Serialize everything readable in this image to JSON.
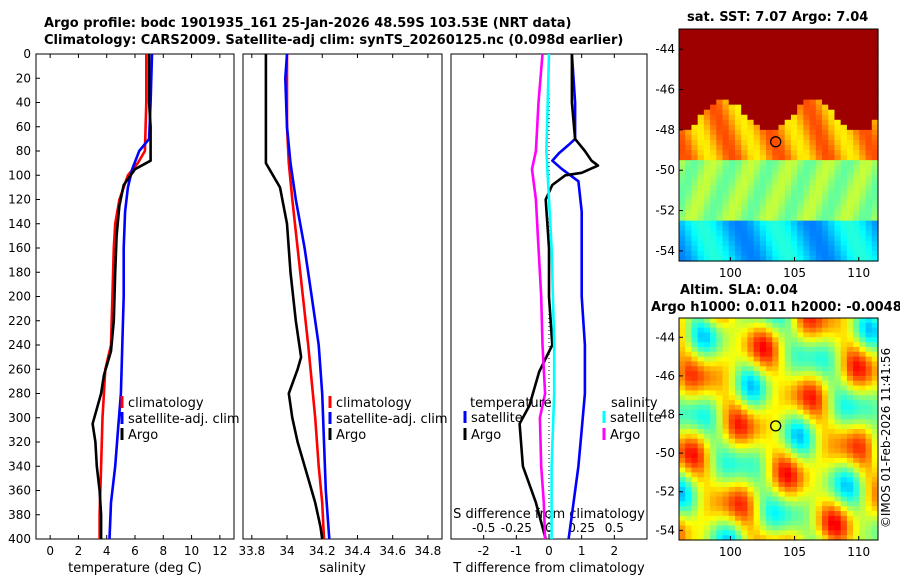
{
  "titles": {
    "line1": "Argo profile: bodc 1901935_161 25-Jan-2026 48.59S 103.53E (NRT data)",
    "line2": "Climatology: CARS2009. Satellite-adj clim: synTS_20260125.nc (0.098d earlier)",
    "sst": "sat. SST: 7.07 Argo: 7.04",
    "sla1": "Altim. SLA: 0.04",
    "sla2": "Argo h1000: 0.011 h2000: -0.0048"
  },
  "copyright": "©IMOS 01-Feb-2026 11:41:56",
  "colors": {
    "climatology": "#ff0000",
    "satellite": "#0000ff",
    "argo": "#000000",
    "salinity_sat": "#00ffff",
    "salinity_argo": "#ff00ff"
  },
  "chart_data": [
    {
      "id": "temperature",
      "type": "line",
      "xlabel": "temperature (deg C)",
      "xlim": [
        -1,
        13
      ],
      "ylim": [
        0,
        400
      ],
      "y_reversed": true,
      "xticks": [
        0,
        2,
        4,
        6,
        8,
        10,
        12
      ],
      "yticks": [
        0,
        20,
        40,
        60,
        80,
        100,
        120,
        140,
        160,
        180,
        200,
        220,
        240,
        260,
        280,
        300,
        320,
        340,
        360,
        380,
        400
      ],
      "legend": {
        "position": "lower-right",
        "labels": [
          "climatology",
          "satellite-adj. clim",
          "Argo"
        ]
      },
      "series": [
        {
          "name": "climatology",
          "color": "#ff0000",
          "points": [
            [
              6.8,
              0
            ],
            [
              6.8,
              40
            ],
            [
              6.7,
              80
            ],
            [
              6.2,
              90
            ],
            [
              5.5,
              100
            ],
            [
              4.9,
              120
            ],
            [
              4.6,
              140
            ],
            [
              4.5,
              160
            ],
            [
              4.4,
              200
            ],
            [
              4.3,
              240
            ],
            [
              3.9,
              260
            ],
            [
              3.7,
              300
            ],
            [
              3.6,
              340
            ],
            [
              3.5,
              380
            ],
            [
              3.5,
              400
            ]
          ]
        },
        {
          "name": "satellite-adj. clim",
          "color": "#0000ff",
          "points": [
            [
              7.2,
              0
            ],
            [
              7.1,
              40
            ],
            [
              7.0,
              70
            ],
            [
              6.3,
              80
            ],
            [
              5.8,
              95
            ],
            [
              5.5,
              110
            ],
            [
              5.3,
              130
            ],
            [
              5.2,
              160
            ],
            [
              5.2,
              200
            ],
            [
              5.1,
              240
            ],
            [
              5.0,
              280
            ],
            [
              4.8,
              310
            ],
            [
              4.6,
              340
            ],
            [
              4.3,
              370
            ],
            [
              4.2,
              400
            ]
          ]
        },
        {
          "name": "Argo",
          "color": "#000000",
          "points": [
            [
              7.0,
              0
            ],
            [
              7.0,
              40
            ],
            [
              7.1,
              60
            ],
            [
              7.1,
              88
            ],
            [
              6.0,
              95
            ],
            [
              5.2,
              108
            ],
            [
              4.9,
              125
            ],
            [
              4.7,
              150
            ],
            [
              4.6,
              180
            ],
            [
              4.5,
              220
            ],
            [
              4.3,
              245
            ],
            [
              3.8,
              265
            ],
            [
              3.6,
              280
            ],
            [
              3.0,
              305
            ],
            [
              3.2,
              320
            ],
            [
              3.3,
              340
            ],
            [
              3.5,
              360
            ],
            [
              3.6,
              380
            ],
            [
              3.6,
              400
            ]
          ]
        }
      ]
    },
    {
      "id": "salinity",
      "type": "line",
      "xlabel": "salinity",
      "xlim": [
        33.75,
        34.88
      ],
      "ylim": [
        0,
        400
      ],
      "y_reversed": true,
      "xticks": [
        33.8,
        34,
        34.2,
        34.4,
        34.6,
        34.8
      ],
      "legend": {
        "position": "lower-right",
        "labels": [
          "climatology",
          "satellite-adj. clim",
          "Argo"
        ]
      },
      "series": [
        {
          "name": "climatology",
          "color": "#ff0000",
          "points": [
            [
              34.0,
              0
            ],
            [
              34.0,
              60
            ],
            [
              34.01,
              90
            ],
            [
              34.03,
              120
            ],
            [
              34.06,
              160
            ],
            [
              34.09,
              200
            ],
            [
              34.12,
              240
            ],
            [
              34.14,
              270
            ],
            [
              34.16,
              300
            ],
            [
              34.18,
              340
            ],
            [
              34.2,
              370
            ],
            [
              34.21,
              400
            ]
          ]
        },
        {
          "name": "satellite-adj. clim",
          "color": "#0000ff",
          "points": [
            [
              34.0,
              0
            ],
            [
              33.99,
              20
            ],
            [
              34.0,
              60
            ],
            [
              34.02,
              90
            ],
            [
              34.05,
              120
            ],
            [
              34.1,
              160
            ],
            [
              34.14,
              200
            ],
            [
              34.18,
              240
            ],
            [
              34.2,
              280
            ],
            [
              34.21,
              320
            ],
            [
              34.22,
              360
            ],
            [
              34.24,
              400
            ]
          ]
        },
        {
          "name": "Argo",
          "color": "#000000",
          "points": [
            [
              33.88,
              0
            ],
            [
              33.88,
              60
            ],
            [
              33.88,
              90
            ],
            [
              33.9,
              95
            ],
            [
              33.96,
              110
            ],
            [
              34.0,
              140
            ],
            [
              34.02,
              180
            ],
            [
              34.05,
              220
            ],
            [
              34.08,
              250
            ],
            [
              34.06,
              260
            ],
            [
              34.01,
              280
            ],
            [
              34.03,
              300
            ],
            [
              34.06,
              320
            ],
            [
              34.12,
              350
            ],
            [
              34.16,
              370
            ],
            [
              34.19,
              390
            ],
            [
              34.2,
              400
            ]
          ]
        }
      ]
    },
    {
      "id": "difference",
      "type": "line",
      "xlabel": "T difference from climatology",
      "x2label": "S difference from climatology",
      "xlim": [
        -3,
        3
      ],
      "x2lim": [
        -0.75,
        0.75
      ],
      "ylim": [
        0,
        400
      ],
      "y_reversed": true,
      "xticks": [
        -2,
        -1,
        0,
        1,
        2
      ],
      "x2ticks": [
        -0.5,
        -0.25,
        0,
        0.25,
        0.5
      ],
      "legend_temperature": {
        "title": "temperature",
        "labels": [
          "satellite",
          "Argo"
        ]
      },
      "legend_salinity": {
        "title": "salinity",
        "labels": [
          "satellite",
          "Argo"
        ]
      },
      "series": [
        {
          "name": "temperature satellite",
          "axis": "T",
          "color": "#0000ff",
          "points": [
            [
              0.7,
              0
            ],
            [
              0.8,
              40
            ],
            [
              0.8,
              70
            ],
            [
              0.6,
              75
            ],
            [
              0.3,
              82
            ],
            [
              0.1,
              88
            ],
            [
              0.4,
              95
            ],
            [
              0.9,
              105
            ],
            [
              1.0,
              130
            ],
            [
              1.0,
              160
            ],
            [
              1.0,
              200
            ],
            [
              1.1,
              240
            ],
            [
              1.1,
              280
            ],
            [
              1.0,
              310
            ],
            [
              0.9,
              340
            ],
            [
              0.7,
              380
            ],
            [
              0.6,
              400
            ]
          ]
        },
        {
          "name": "temperature Argo",
          "axis": "T",
          "color": "#000000",
          "points": [
            [
              0.7,
              0
            ],
            [
              0.7,
              40
            ],
            [
              0.8,
              70
            ],
            [
              1.1,
              80
            ],
            [
              1.3,
              88
            ],
            [
              1.5,
              92
            ],
            [
              1.0,
              98
            ],
            [
              0.5,
              100
            ],
            [
              0.1,
              108
            ],
            [
              -0.1,
              120
            ],
            [
              0.0,
              160
            ],
            [
              0.0,
              200
            ],
            [
              0.1,
              240
            ],
            [
              -0.3,
              262
            ],
            [
              -0.6,
              290
            ],
            [
              -0.9,
              305
            ],
            [
              -0.8,
              340
            ],
            [
              -0.4,
              370
            ],
            [
              -0.1,
              400
            ]
          ]
        },
        {
          "name": "salinity satellite",
          "axis": "S",
          "color": "#00ffff",
          "points": [
            [
              0.0,
              0
            ],
            [
              -0.01,
              40
            ],
            [
              -0.02,
              80
            ],
            [
              0.0,
              120
            ],
            [
              0.02,
              160
            ],
            [
              0.03,
              200
            ],
            [
              0.04,
              240
            ],
            [
              0.04,
              280
            ],
            [
              0.03,
              310
            ],
            [
              0.02,
              340
            ],
            [
              0.02,
              360
            ],
            [
              0.02,
              400
            ]
          ]
        },
        {
          "name": "salinity Argo",
          "axis": "S",
          "color": "#ff00ff",
          "points": [
            [
              -0.05,
              0
            ],
            [
              -0.08,
              40
            ],
            [
              -0.1,
              80
            ],
            [
              -0.13,
              95
            ],
            [
              -0.1,
              120
            ],
            [
              -0.08,
              160
            ],
            [
              -0.06,
              200
            ],
            [
              -0.05,
              240
            ],
            [
              -0.03,
              280
            ],
            [
              -0.07,
              300
            ],
            [
              -0.06,
              340
            ],
            [
              -0.04,
              370
            ],
            [
              -0.03,
              400
            ]
          ]
        }
      ]
    },
    {
      "id": "sst_map",
      "type": "heatmap",
      "title": "sat. SST: 7.07 Argo: 7.04",
      "xlim": [
        96,
        111.5
      ],
      "ylim": [
        -54.5,
        -43
      ],
      "xticks": [
        100,
        105,
        110
      ],
      "yticks": [
        -44,
        -46,
        -48,
        -50,
        -52,
        -54
      ],
      "marker": [
        103.53,
        -48.59
      ]
    },
    {
      "id": "sla_map",
      "type": "heatmap",
      "title": "Altim. SLA: 0.04",
      "subtitle": "Argo h1000: 0.011 h2000: -0.0048",
      "xlim": [
        96,
        111.5
      ],
      "ylim": [
        -54.5,
        -43
      ],
      "xticks": [
        100,
        105,
        110
      ],
      "yticks": [
        -44,
        -46,
        -48,
        -50,
        -52,
        -54
      ],
      "marker": [
        103.53,
        -48.59
      ]
    }
  ]
}
